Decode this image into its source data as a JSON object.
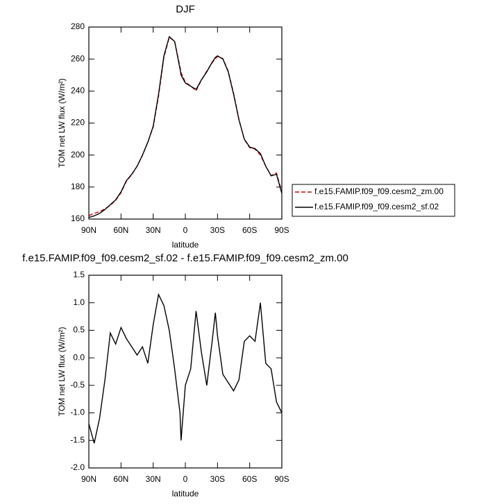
{
  "chart_data": [
    {
      "type": "line",
      "title": "DJF",
      "xlabel": "latitude",
      "ylabel": "TOM net LW flux (W/m²)",
      "x": [
        90,
        85,
        80,
        75,
        70,
        65,
        60,
        55,
        50,
        45,
        40,
        35,
        30,
        25,
        20,
        15,
        10,
        5,
        4,
        0,
        -5,
        -10,
        -15,
        -20,
        -25,
        -28,
        -30,
        -35,
        -40,
        -45,
        -50,
        -55,
        -60,
        -65,
        -70,
        -75,
        -80,
        -85,
        -90
      ],
      "series": [
        {
          "name": "f.e15.FAMIP.f09_f09.cesm2_zm.00",
          "color": "#d40000",
          "dash": "dashed",
          "values": [
            162.2,
            163.55,
            164.6,
            166.4,
            168.55,
            171.75,
            176.45,
            183.65,
            187.8,
            192.95,
            199.8,
            208.1,
            217.4,
            236.85,
            261.05,
            273.5,
            271.2,
            255,
            251.5,
            245.5,
            243.2,
            240.15,
            246.9,
            252.5,
            257.7,
            260.18,
            261.6,
            260.3,
            252.45,
            238.6,
            222.4,
            209.7,
            204.6,
            203.7,
            200,
            193.1,
            187.2,
            188.8,
            177
          ]
        },
        {
          "name": "f.e15.FAMIP.f09_f09.cesm2_sf.02",
          "color": "#000000",
          "dash": "solid",
          "values": [
            161,
            162,
            163.5,
            166,
            169,
            172,
            177,
            184,
            188,
            193,
            200,
            208,
            218,
            238,
            262,
            274,
            271,
            254,
            250,
            245,
            243,
            241,
            247,
            252,
            258,
            261,
            262,
            260,
            252,
            238,
            222,
            210,
            205,
            204,
            201,
            193,
            187,
            188,
            176
          ]
        }
      ],
      "xlim": [
        90,
        -90
      ],
      "xticks": [
        {
          "value": 90,
          "label": "90N"
        },
        {
          "value": 60,
          "label": "60N"
        },
        {
          "value": 30,
          "label": "30N"
        },
        0,
        {
          "value": -30,
          "label": "30S"
        },
        {
          "value": -60,
          "label": "60S"
        },
        {
          "value": -90,
          "label": "90S"
        }
      ],
      "ylim": [
        160,
        280
      ],
      "yticks": [
        160,
        180,
        200,
        220,
        240,
        260,
        280
      ],
      "legend": "right"
    },
    {
      "type": "line",
      "title": "f.e15.FAMIP.f09_f09.cesm2_sf.02 - f.e15.FAMIP.f09_f09.cesm2_zm.00",
      "xlabel": "latitude",
      "ylabel": "TOM net LW flux (W/m²)",
      "x": [
        90,
        85,
        80,
        75,
        70,
        65,
        60,
        55,
        50,
        45,
        40,
        35,
        30,
        25,
        20,
        15,
        10,
        5,
        4,
        0,
        -5,
        -10,
        -15,
        -20,
        -25,
        -28,
        -30,
        -35,
        -40,
        -45,
        -50,
        -55,
        -60,
        -65,
        -70,
        -75,
        -80,
        -85,
        -90
      ],
      "series": [
        {
          "color": "#000000",
          "dash": "solid",
          "values": [
            -1.2,
            -1.55,
            -1.1,
            -0.4,
            0.45,
            0.25,
            0.55,
            0.35,
            0.2,
            0.05,
            0.2,
            -0.1,
            0.6,
            1.15,
            0.95,
            0.5,
            -0.2,
            -1.0,
            -1.5,
            -0.5,
            -0.2,
            0.85,
            0.1,
            -0.5,
            0.3,
            0.82,
            0.4,
            -0.3,
            -0.45,
            -0.6,
            -0.4,
            0.3,
            0.4,
            0.3,
            1.0,
            -0.1,
            -0.2,
            -0.8,
            -1.0
          ]
        }
      ],
      "xlim": [
        90,
        -90
      ],
      "xticks": [
        {
          "value": 90,
          "label": "90N"
        },
        {
          "value": 60,
          "label": "60N"
        },
        {
          "value": 30,
          "label": "30N"
        },
        0,
        {
          "value": -30,
          "label": "30S"
        },
        {
          "value": -60,
          "label": "60S"
        },
        {
          "value": -90,
          "label": "90S"
        }
      ],
      "ylim": [
        -2,
        1.5
      ],
      "yticks": [
        {
          "value": -2,
          "label": "-2.0"
        },
        -1.5,
        {
          "value": -1,
          "label": "-1.0"
        },
        -0.5,
        {
          "value": 0,
          "label": "0.0"
        },
        0.5,
        {
          "value": 1,
          "label": "1.0"
        },
        1.5
      ]
    }
  ]
}
